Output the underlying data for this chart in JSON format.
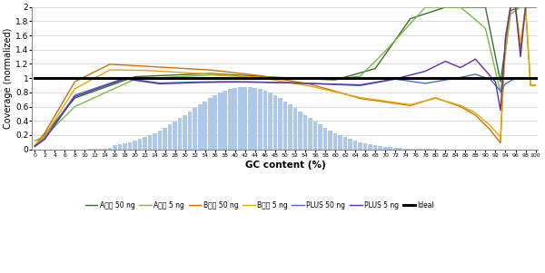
{
  "xlabel": "GC content (%)",
  "ylabel": "Coverage (normalized)",
  "ylim": [
    0,
    2.0
  ],
  "xlim": [
    0,
    100
  ],
  "yticks": [
    0,
    0.2,
    0.4,
    0.6,
    0.8,
    1.0,
    1.2,
    1.4,
    1.6,
    1.8,
    2.0
  ],
  "ytick_labels": [
    "0",
    "0.2",
    "0.4",
    "0.6",
    "0.8",
    "1",
    "1.2",
    "1.4",
    "1.6",
    "1.8",
    "2"
  ],
  "legend_labels": [
    "A公司 50 ng",
    "A公司 5 ng",
    "B公司 50 ng",
    "B公司 5 ng",
    "PLUS 50 ng",
    "PLUS 5 ng",
    "Ideal"
  ],
  "legend_colors": [
    "#3a6e2a",
    "#7ab84a",
    "#d07000",
    "#e8a800",
    "#4472c4",
    "#6030a0",
    "#000000"
  ],
  "bar_color": "#adc8e8",
  "background_color": "#ffffff",
  "grid_color": "#cccccc"
}
